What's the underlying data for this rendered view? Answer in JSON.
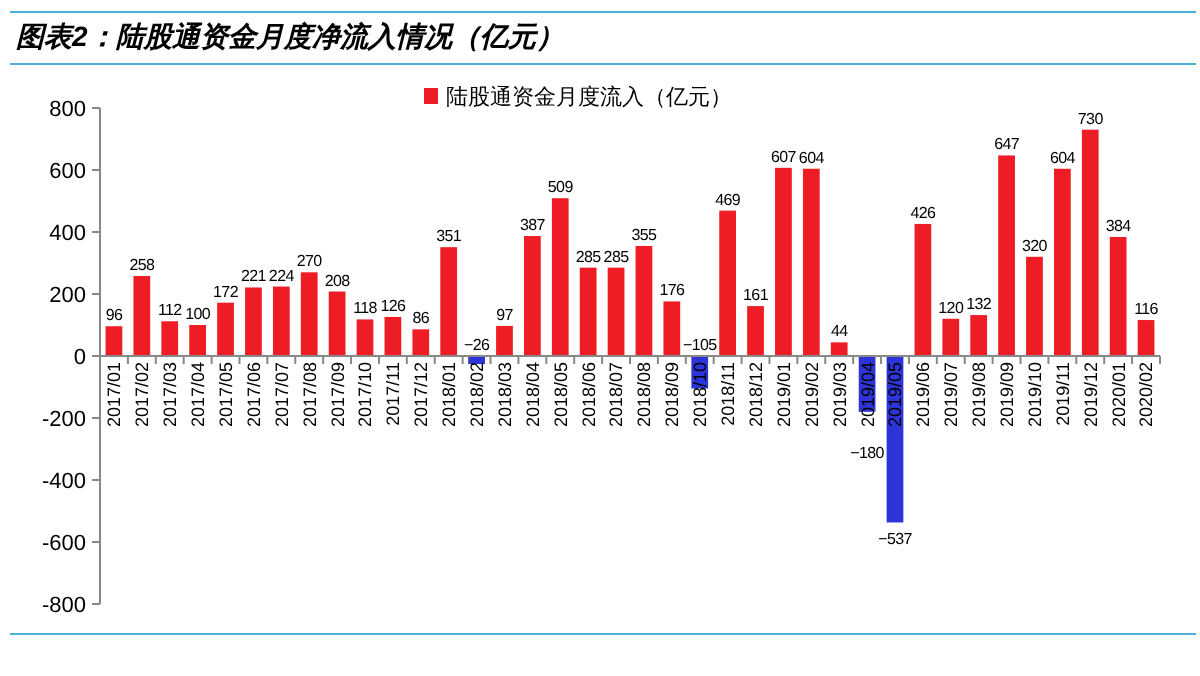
{
  "chart_data": {
    "type": "bar",
    "title": "图表2：陆股通资金月度净流入情况（亿元）",
    "categories": [
      "2017/01",
      "2017/02",
      "2017/03",
      "2017/04",
      "2017/05",
      "2017/06",
      "2017/07",
      "2017/08",
      "2017/09",
      "2017/10",
      "2017/11",
      "2017/12",
      "2018/01",
      "2018/02",
      "2018/03",
      "2018/04",
      "2018/05",
      "2018/06",
      "2018/07",
      "2018/08",
      "2018/09",
      "2018/10",
      "2018/11",
      "2018/12",
      "2019/01",
      "2019/02",
      "2019/03",
      "2019/04",
      "2019/05",
      "2019/06",
      "2019/07",
      "2019/08",
      "2019/09",
      "2019/10",
      "2019/11",
      "2019/12",
      "2020/01",
      "2020/02"
    ],
    "series": [
      {
        "name": "陆股通资金月度流入（亿元）",
        "color": "#ee1c25",
        "values": [
          96,
          258,
          112,
          100,
          172,
          221,
          224,
          270,
          208,
          118,
          126,
          86,
          351,
          -26,
          97,
          387,
          509,
          285,
          285,
          355,
          176,
          -105,
          469,
          161,
          607,
          604,
          44,
          -180,
          -537,
          426,
          120,
          132,
          647,
          320,
          604,
          730,
          384,
          116
        ],
        "colors": [
          "#ee1c25",
          "#ee1c25",
          "#ee1c25",
          "#ee1c25",
          "#ee1c25",
          "#ee1c25",
          "#ee1c25",
          "#ee1c25",
          "#ee1c25",
          "#ee1c25",
          "#ee1c25",
          "#ee1c25",
          "#ee1c25",
          "#2e35d8",
          "#ee1c25",
          "#ee1c25",
          "#ee1c25",
          "#ee1c25",
          "#ee1c25",
          "#ee1c25",
          "#ee1c25",
          "#2e35d8",
          "#ee1c25",
          "#ee1c25",
          "#ee1c25",
          "#ee1c25",
          "#ee1c25",
          "#2e35d8",
          "#2e35d8",
          "#ee1c25",
          "#ee1c25",
          "#ee1c25",
          "#ee1c25",
          "#ee1c25",
          "#ee1c25",
          "#ee1c25",
          "#ee1c25",
          "#ee1c25"
        ],
        "value_labels": [
          "96",
          "258",
          "112",
          "100",
          "172",
          "221",
          "224",
          "270",
          "208",
          "118",
          "126",
          "86",
          "351",
          "−26",
          "97",
          "387",
          "509",
          "285",
          "285",
          "355",
          "176",
          "−105",
          "469",
          "161",
          "607",
          "604",
          "44",
          "−180",
          "−537",
          "426",
          "120",
          "132",
          "647",
          "320",
          "604",
          "730",
          "384",
          "116"
        ]
      }
    ],
    "ylim": [
      -800,
      800
    ],
    "yticks": [
      {
        "value": -800,
        "label": "-800"
      },
      {
        "value": -600,
        "label": "-600"
      },
      {
        "value": -400,
        "label": "-400"
      },
      {
        "value": -200,
        "label": "-200"
      },
      0,
      200,
      400,
      600,
      800
    ],
    "grid": false,
    "legend": "top"
  }
}
